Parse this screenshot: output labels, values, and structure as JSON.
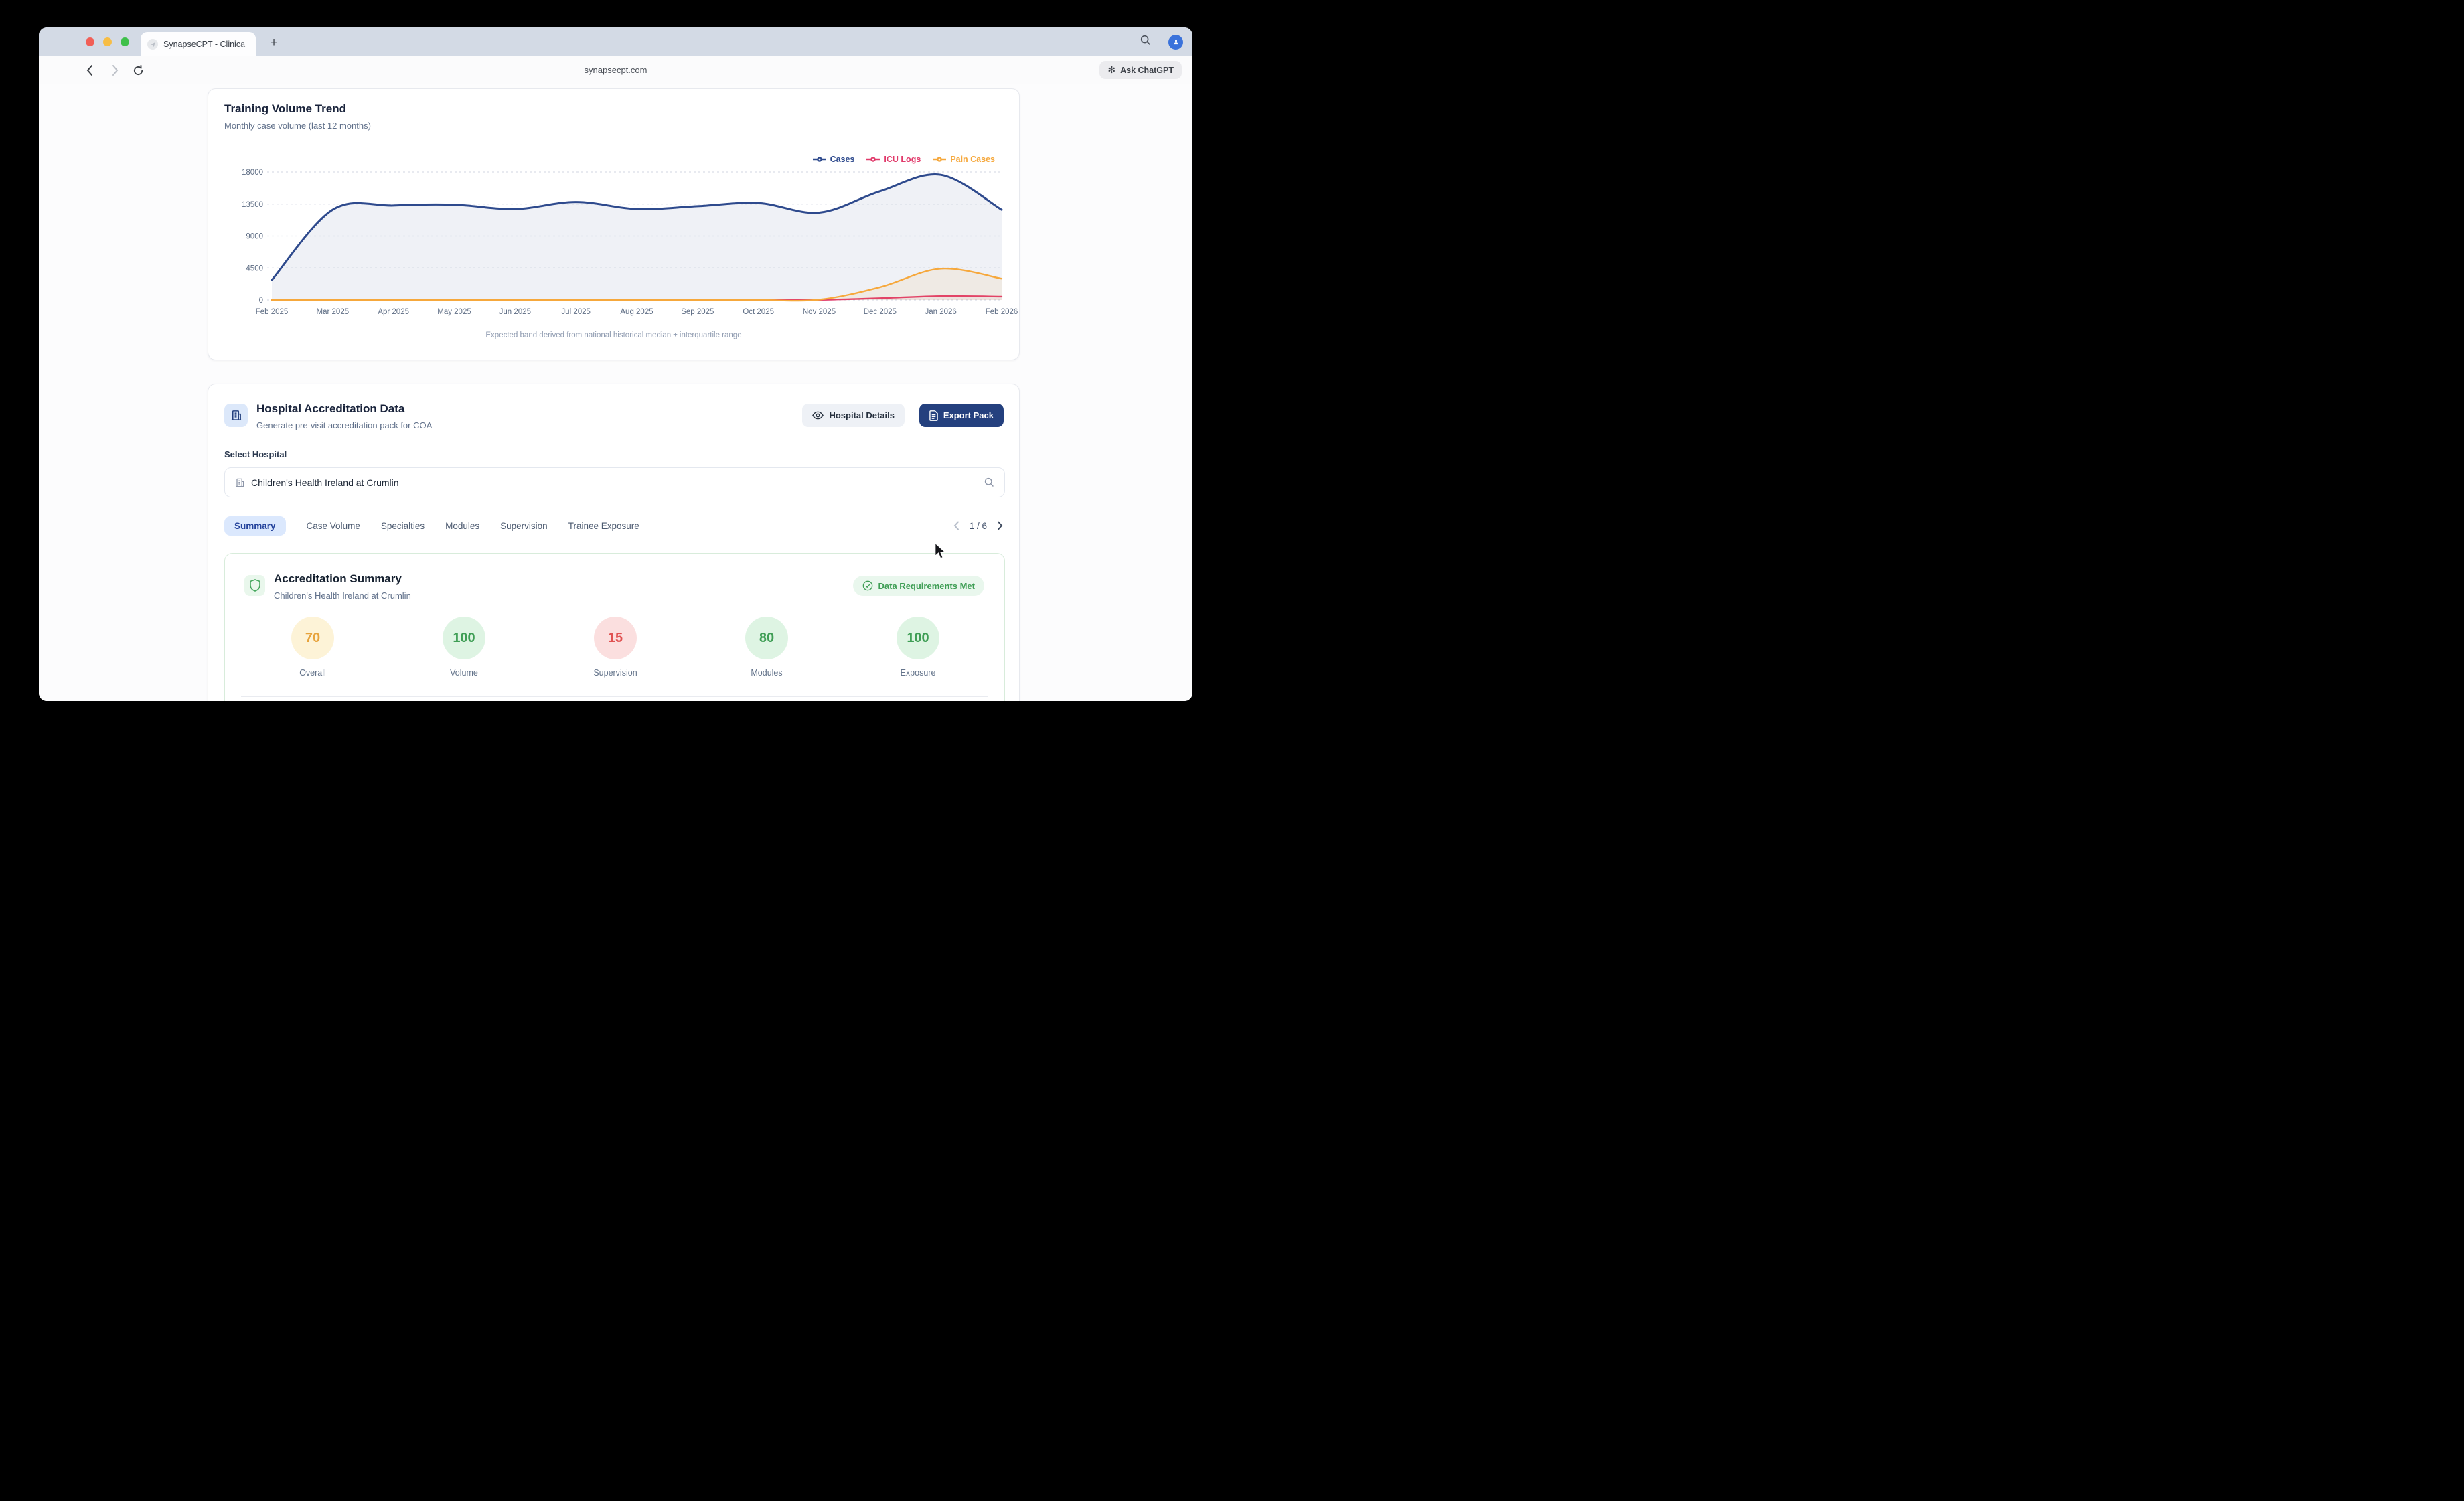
{
  "browser": {
    "tab_title": "SynapseCPT - Clinica",
    "url": "synapsecpt.com",
    "ask_chatgpt_label": "Ask ChatGPT",
    "new_tab_label": "+"
  },
  "trend_card": {
    "title": "Training Volume Trend",
    "subtitle": "Monthly case volume (last 12 months)",
    "footnote": "Expected band derived from national historical median ± interquartile range"
  },
  "chart_data": {
    "type": "area",
    "title": "Training Volume Trend",
    "x": [
      "Feb 2025",
      "Mar 2025",
      "Apr 2025",
      "May 2025",
      "Jun 2025",
      "Jul 2025",
      "Aug 2025",
      "Sep 2025",
      "Oct 2025",
      "Nov 2025",
      "Dec 2025",
      "Jan 2026",
      "Feb 2026"
    ],
    "series": [
      {
        "name": "Cases",
        "color": "#2e4a8d",
        "fill": "rgba(46,74,141,0.08)",
        "values": [
          2800,
          12700,
          13300,
          13400,
          12800,
          13800,
          12800,
          13200,
          13650,
          12300,
          15300,
          17600,
          12700
        ]
      },
      {
        "name": "ICU Logs",
        "color": "#e13a6b",
        "fill": "rgba(225,58,107,0.05)",
        "values": [
          0,
          0,
          0,
          0,
          0,
          0,
          0,
          0,
          0,
          20,
          250,
          550,
          480
        ]
      },
      {
        "name": "Pain Cases",
        "color": "#f6a83c",
        "fill": "rgba(246,168,60,0.09)",
        "values": [
          0,
          0,
          0,
          0,
          0,
          0,
          0,
          0,
          0,
          50,
          1800,
          4400,
          3000
        ]
      }
    ],
    "yticks": [
      0,
      4500,
      9000,
      13500,
      18000
    ],
    "ylim": [
      0,
      18000
    ],
    "grid": "dashed-horizontal",
    "legend_position": "top-right"
  },
  "accreditation_card": {
    "title": "Hospital Accreditation Data",
    "subtitle": "Generate pre-visit accreditation pack for COA",
    "hospital_details_label": "Hospital Details",
    "export_pack_label": "Export Pack",
    "select_hospital_label": "Select Hospital",
    "hospital_value": "Children's Health Ireland at Crumlin",
    "tabs": [
      {
        "label": "Summary",
        "active": true
      },
      {
        "label": "Case Volume",
        "active": false
      },
      {
        "label": "Specialties",
        "active": false
      },
      {
        "label": "Modules",
        "active": false
      },
      {
        "label": "Supervision",
        "active": false
      },
      {
        "label": "Trainee Exposure",
        "active": false
      }
    ],
    "pagination": "1 / 6",
    "summary": {
      "title": "Accreditation Summary",
      "subtitle": "Children's Health Ireland at Crumlin",
      "badge": "Data Requirements Met",
      "scores": [
        {
          "value": "70",
          "label": "Overall",
          "theme": "amber"
        },
        {
          "value": "100",
          "label": "Volume",
          "theme": "green"
        },
        {
          "value": "15",
          "label": "Supervision",
          "theme": "red"
        },
        {
          "value": "80",
          "label": "Modules",
          "theme": "green"
        },
        {
          "value": "100",
          "label": "Exposure",
          "theme": "green"
        }
      ]
    }
  },
  "colors": {
    "accent_navy": "#24407e",
    "active_tab_bg": "#dbe8fd",
    "success_green": "#3f9e55",
    "titlebar": "#d3dae5",
    "avatar_blue": "#3a72db"
  }
}
